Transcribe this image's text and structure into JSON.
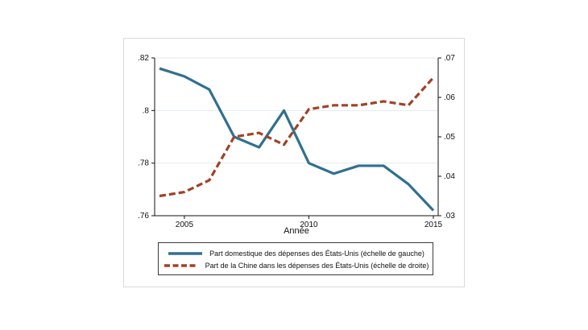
{
  "chart_data": {
    "type": "line",
    "title": "",
    "xlabel": "Année",
    "grid": true,
    "legend_position": "bottom",
    "x": [
      2004,
      2005,
      2006,
      2007,
      2008,
      2009,
      2010,
      2011,
      2012,
      2013,
      2014,
      2015
    ],
    "x_ticks": [
      "2005",
      "2010",
      "2015"
    ],
    "left_axis": {
      "min": 0.76,
      "max": 0.82,
      "ticks": [
        ".76",
        ".78",
        ".8",
        ".82"
      ]
    },
    "right_axis": {
      "min": 0.03,
      "max": 0.07,
      "ticks": [
        ".03",
        ".04",
        ".05",
        ".06",
        ".07"
      ]
    },
    "series": [
      {
        "name": "Part domestique des dépenses des États-Unis (échelle de gauche)",
        "axis": "left",
        "style": "solid",
        "color": "#31708f",
        "values": [
          0.816,
          0.813,
          0.808,
          0.79,
          0.786,
          0.8,
          0.78,
          0.776,
          0.779,
          0.779,
          0.772,
          0.762
        ]
      },
      {
        "name": "Part de la Chine dans les dépenses des États-Unis (échelle de droite)",
        "axis": "right",
        "style": "dashed",
        "color": "#a14226",
        "values": [
          0.035,
          0.036,
          0.039,
          0.05,
          0.051,
          0.048,
          0.057,
          0.058,
          0.058,
          0.059,
          0.058,
          0.065
        ]
      }
    ],
    "colors": {
      "grid": "#e3ebf1",
      "axis": "#111111",
      "text": "#111111"
    }
  }
}
